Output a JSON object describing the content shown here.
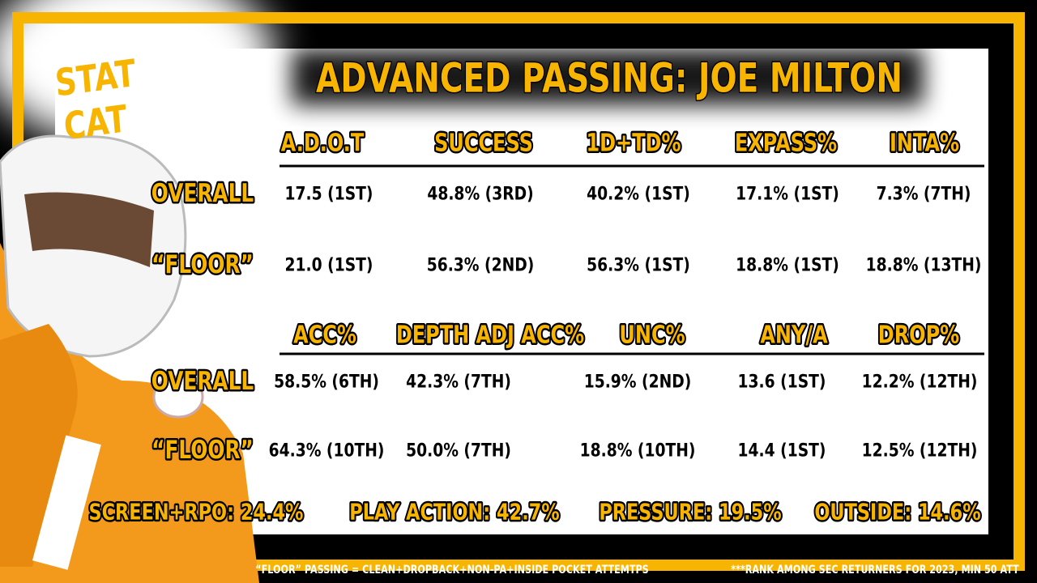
{
  "header": {
    "title": "ADVANCED PASSING: JOE MILTON",
    "logo": [
      "STAT",
      "CAT"
    ]
  },
  "tables": [
    {
      "columns": [
        "A.D.O.T",
        "SUCCESS",
        "1D+TD%",
        "EXPASS%",
        "INTA%"
      ],
      "rows": [
        {
          "label": "OVERALL",
          "cells": [
            "17.5  (1ST)",
            "48.8% (3RD)",
            "40.2% (1ST)",
            "17.1% (1ST)",
            "7.3% (7TH)"
          ]
        },
        {
          "label": "“FLOOR”",
          "cells": [
            "21.0 (1ST)",
            "56.3% (2ND)",
            "56.3% (1ST)",
            "18.8% (1ST)",
            "18.8% (13TH)"
          ]
        }
      ]
    },
    {
      "columns": [
        "ACC%",
        "DEPTH ADJ ACC%",
        "UNC%",
        "ANY/A",
        "DROP%"
      ],
      "rows": [
        {
          "label": "OVERALL",
          "cells": [
            "58.5% (6TH)",
            "42.3% (7TH)",
            "15.9% (2ND)",
            "13.6 (1ST)",
            "12.2% (12TH)"
          ]
        },
        {
          "label": "“FLOOR”",
          "cells": [
            "64.3% (10TH)",
            "50.0% (7TH)",
            "18.8% (10TH)",
            "14.4 (1ST)",
            "12.5% (12TH)"
          ]
        }
      ]
    }
  ],
  "summary": [
    "SCREEN+RPO: 24.4%",
    "PLAY ACTION: 42.7%",
    "PRESSURE: 19.5%",
    "OUTSIDE: 14.6%"
  ],
  "footer": {
    "left": "“FLOOR” PASSING = CLEAN+DROPBACK+NON-PA+INSIDE POCKET ATTEMTPS",
    "right": "***RANK AMONG SEC RETURNERS FOR 2023, MIN 50 ATT"
  }
}
